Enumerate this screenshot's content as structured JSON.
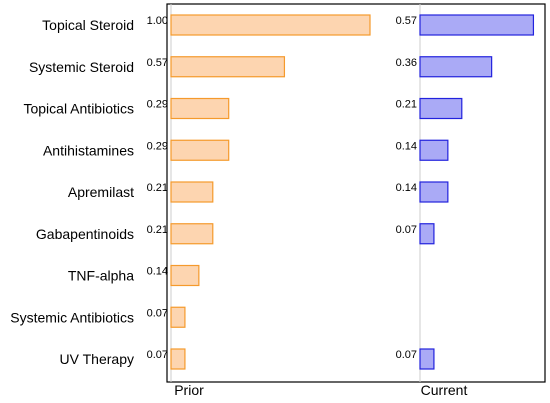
{
  "chart_data": {
    "type": "bar",
    "orientation": "horizontal",
    "categories": [
      "Topical Steroid",
      "Systemic Steroid",
      "Topical Antibiotics",
      "Antihistamines",
      "Apremilast",
      "Gabapentinoids",
      "TNF-alpha",
      "Systemic Antibiotics",
      "UV Therapy"
    ],
    "series": [
      {
        "name": "Prior",
        "values": [
          1.0,
          0.57,
          0.29,
          0.29,
          0.21,
          0.21,
          0.14,
          0.07,
          0.07
        ],
        "labels": [
          "1.00",
          "0.57",
          "0.29",
          "0.29",
          "0.21",
          "0.21",
          "0.14",
          "0.07",
          "0.07"
        ],
        "fill": "#fdd5b0",
        "stroke": "#f59a2c"
      },
      {
        "name": "Current",
        "values": [
          0.57,
          0.36,
          0.21,
          0.14,
          0.14,
          0.07,
          null,
          null,
          0.07
        ],
        "labels": [
          "0.57",
          "0.36",
          "0.21",
          "0.14",
          "0.14",
          "0.07",
          "",
          "",
          "0.07"
        ],
        "fill": "#aaaaf6",
        "stroke": "#2222dd"
      }
    ],
    "xlim": [
      0,
      1.0
    ],
    "grid": false,
    "legend": "none"
  }
}
